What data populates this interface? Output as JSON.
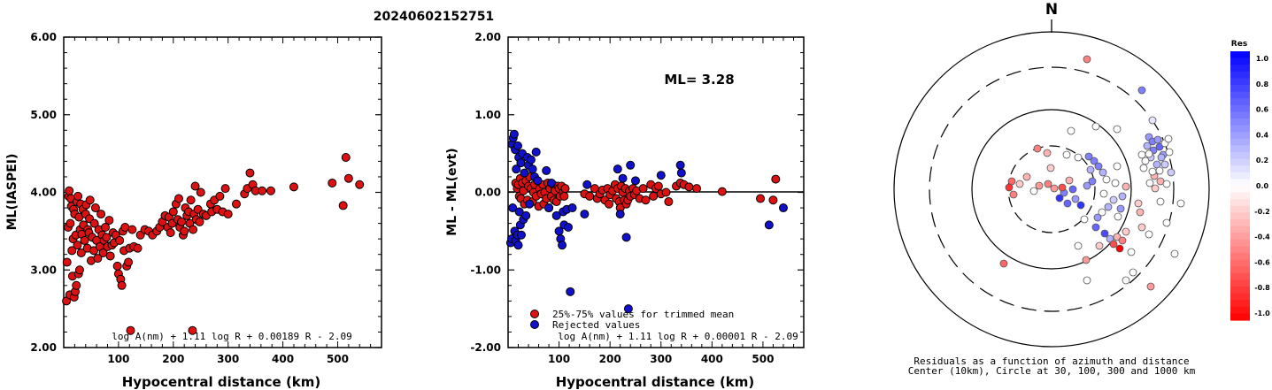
{
  "title": "20240602152751",
  "chart_data": [
    {
      "type": "scatter",
      "ylabel": "ML(IASPEI)",
      "xlabel": "Hypocentral distance (km)",
      "xlim": [
        0,
        580
      ],
      "ylim": [
        2.0,
        6.0
      ],
      "x_ticks": [
        100,
        200,
        300,
        400,
        500
      ],
      "y_ticks": [
        "2.00",
        "3.00",
        "4.00",
        "5.00",
        "6.00"
      ],
      "formula": "log A(nm) + 1.11 log R + 0.00189 R - 2.09",
      "marker_color": "#dd1111",
      "points": [
        [
          5,
          2.6
        ],
        [
          6,
          3.1
        ],
        [
          8,
          3.55
        ],
        [
          9,
          3.95
        ],
        [
          10,
          4.02
        ],
        [
          11,
          2.68
        ],
        [
          12,
          3.6
        ],
        [
          13,
          3.92
        ],
        [
          14,
          3.82
        ],
        [
          15,
          3.25
        ],
        [
          16,
          2.92
        ],
        [
          17,
          3.4
        ],
        [
          18,
          3.78
        ],
        [
          19,
          2.65
        ],
        [
          20,
          3.72
        ],
        [
          21,
          2.72
        ],
        [
          22,
          3.45
        ],
        [
          23,
          2.8
        ],
        [
          24,
          3.88
        ],
        [
          25,
          3.32
        ],
        [
          26,
          3.95
        ],
        [
          27,
          2.95
        ],
        [
          28,
          3.68
        ],
        [
          29,
          3.0
        ],
        [
          30,
          3.52
        ],
        [
          31,
          3.85
        ],
        [
          32,
          3.22
        ],
        [
          33,
          3.46
        ],
        [
          35,
          3.78
        ],
        [
          36,
          3.58
        ],
        [
          38,
          3.38
        ],
        [
          40,
          3.72
        ],
        [
          41,
          3.84
        ],
        [
          43,
          3.28
        ],
        [
          44,
          3.52
        ],
        [
          46,
          3.48
        ],
        [
          47,
          3.66
        ],
        [
          48,
          3.9
        ],
        [
          50,
          3.12
        ],
        [
          52,
          3.42
        ],
        [
          55,
          3.25
        ],
        [
          56,
          3.6
        ],
        [
          58,
          3.8
        ],
        [
          60,
          3.38
        ],
        [
          62,
          3.15
        ],
        [
          64,
          3.52
        ],
        [
          66,
          3.3
        ],
        [
          68,
          3.72
        ],
        [
          70,
          3.45
        ],
        [
          72,
          3.22
        ],
        [
          74,
          3.38
        ],
        [
          76,
          3.55
        ],
        [
          78,
          3.42
        ],
        [
          80,
          3.3
        ],
        [
          83,
          3.64
        ],
        [
          85,
          3.18
        ],
        [
          88,
          3.32
        ],
        [
          90,
          3.48
        ],
        [
          92,
          3.35
        ],
        [
          95,
          3.45
        ],
        [
          98,
          3.05
        ],
        [
          100,
          2.95
        ],
        [
          102,
          3.38
        ],
        [
          104,
          2.88
        ],
        [
          106,
          2.8
        ],
        [
          108,
          3.5
        ],
        [
          110,
          3.25
        ],
        [
          112,
          3.55
        ],
        [
          115,
          3.05
        ],
        [
          118,
          3.1
        ],
        [
          120,
          3.28
        ],
        [
          122,
          2.22
        ],
        [
          125,
          3.52
        ],
        [
          128,
          3.3
        ],
        [
          135,
          3.28
        ],
        [
          140,
          3.45
        ],
        [
          148,
          3.52
        ],
        [
          155,
          3.5
        ],
        [
          162,
          3.45
        ],
        [
          170,
          3.5
        ],
        [
          175,
          3.55
        ],
        [
          180,
          3.62
        ],
        [
          185,
          3.7
        ],
        [
          190,
          3.55
        ],
        [
          192,
          3.68
        ],
        [
          195,
          3.48
        ],
        [
          198,
          3.6
        ],
        [
          200,
          3.75
        ],
        [
          205,
          3.85
        ],
        [
          208,
          3.65
        ],
        [
          210,
          3.92
        ],
        [
          212,
          3.55
        ],
        [
          215,
          3.62
        ],
        [
          218,
          3.45
        ],
        [
          220,
          3.5
        ],
        [
          222,
          3.8
        ],
        [
          225,
          3.7
        ],
        [
          228,
          3.75
        ],
        [
          230,
          3.6
        ],
        [
          232,
          3.9
        ],
        [
          235,
          2.22
        ],
        [
          236,
          3.52
        ],
        [
          238,
          3.72
        ],
        [
          240,
          4.08
        ],
        [
          242,
          3.65
        ],
        [
          245,
          3.78
        ],
        [
          248,
          3.62
        ],
        [
          250,
          4.0
        ],
        [
          255,
          3.72
        ],
        [
          260,
          3.7
        ],
        [
          268,
          3.85
        ],
        [
          270,
          3.75
        ],
        [
          275,
          3.9
        ],
        [
          280,
          3.78
        ],
        [
          285,
          3.95
        ],
        [
          290,
          3.75
        ],
        [
          295,
          4.05
        ],
        [
          300,
          3.72
        ],
        [
          315,
          3.85
        ],
        [
          330,
          3.98
        ],
        [
          335,
          4.05
        ],
        [
          340,
          4.25
        ],
        [
          345,
          4.1
        ],
        [
          350,
          4.02
        ],
        [
          362,
          4.02
        ],
        [
          378,
          4.02
        ],
        [
          420,
          4.07
        ],
        [
          490,
          4.12
        ],
        [
          510,
          3.83
        ],
        [
          515,
          4.45
        ],
        [
          520,
          4.18
        ],
        [
          540,
          4.1
        ]
      ]
    },
    {
      "type": "scatter",
      "ylabel": "ML - ML(evt)",
      "xlabel": "Hypocentral distance (km)",
      "xlim": [
        0,
        580
      ],
      "ylim": [
        -2.0,
        2.0
      ],
      "x_ticks": [
        100,
        200,
        300,
        400,
        500
      ],
      "y_ticks": [
        "-2.00",
        "-1.00",
        "0.00",
        "1.00",
        "2.00"
      ],
      "annotation": "ML= 3.28",
      "formula": "log A(nm) + 1.11 log R + 0.00001 R - 2.09",
      "legend": [
        "25%-75% values for trimmed mean",
        "Rejected values"
      ],
      "colors": {
        "trimmed": "#dd1111",
        "rejected": "#1111cc"
      },
      "trimmed": [
        [
          15,
          0.12
        ],
        [
          18,
          0.05
        ],
        [
          20,
          0.1
        ],
        [
          22,
          -0.05
        ],
        [
          24,
          0.18
        ],
        [
          25,
          -0.08
        ],
        [
          28,
          0.12
        ],
        [
          30,
          0.02
        ],
        [
          32,
          -0.15
        ],
        [
          35,
          0.15
        ],
        [
          38,
          -0.1
        ],
        [
          40,
          0.08
        ],
        [
          42,
          0.2
        ],
        [
          45,
          0.05
        ],
        [
          48,
          -0.12
        ],
        [
          50,
          0.0
        ],
        [
          52,
          0.1
        ],
        [
          55,
          -0.05
        ],
        [
          58,
          0.15
        ],
        [
          60,
          -0.18
        ],
        [
          62,
          0.05
        ],
        [
          65,
          -0.02
        ],
        [
          68,
          0.1
        ],
        [
          70,
          -0.15
        ],
        [
          72,
          0.0
        ],
        [
          75,
          -0.08
        ],
        [
          78,
          0.12
        ],
        [
          80,
          -0.2
        ],
        [
          82,
          0.05
        ],
        [
          85,
          -0.05
        ],
        [
          88,
          0.1
        ],
        [
          90,
          -0.1
        ],
        [
          92,
          0.02
        ],
        [
          95,
          -0.12
        ],
        [
          98,
          0.08
        ],
        [
          100,
          0.05
        ],
        [
          102,
          -0.05
        ],
        [
          105,
          0.08
        ],
        [
          108,
          0.0
        ],
        [
          110,
          -0.05
        ],
        [
          112,
          0.05
        ],
        [
          150,
          -0.02
        ],
        [
          160,
          -0.05
        ],
        [
          170,
          0.05
        ],
        [
          175,
          -0.08
        ],
        [
          180,
          -0.02
        ],
        [
          185,
          0.03
        ],
        [
          190,
          -0.1
        ],
        [
          195,
          0.05
        ],
        [
          198,
          -0.15
        ],
        [
          200,
          -0.03
        ],
        [
          205,
          0.02
        ],
        [
          210,
          0.1
        ],
        [
          212,
          -0.08
        ],
        [
          215,
          0.05
        ],
        [
          218,
          -0.12
        ],
        [
          220,
          -0.2
        ],
        [
          222,
          0.08
        ],
        [
          225,
          0.0
        ],
        [
          228,
          -0.1
        ],
        [
          230,
          0.05
        ],
        [
          232,
          -0.15
        ],
        [
          235,
          -0.1
        ],
        [
          238,
          0.02
        ],
        [
          240,
          -0.05
        ],
        [
          245,
          0.05
        ],
        [
          248,
          -0.03
        ],
        [
          252,
          0.02
        ],
        [
          258,
          -0.08
        ],
        [
          265,
          0.05
        ],
        [
          270,
          -0.1
        ],
        [
          280,
          0.1
        ],
        [
          285,
          -0.05
        ],
        [
          290,
          0.05
        ],
        [
          295,
          0.08
        ],
        [
          300,
          -0.02
        ],
        [
          310,
          0.0
        ],
        [
          315,
          -0.12
        ],
        [
          330,
          0.08
        ],
        [
          338,
          0.12
        ],
        [
          345,
          0.1
        ],
        [
          355,
          0.07
        ],
        [
          370,
          0.05
        ],
        [
          420,
          0.01
        ],
        [
          495,
          -0.08
        ],
        [
          520,
          -0.1
        ],
        [
          525,
          0.17
        ]
      ],
      "rejected": [
        [
          5,
          -0.65
        ],
        [
          7,
          -0.6
        ],
        [
          8,
          0.62
        ],
        [
          9,
          -0.2
        ],
        [
          10,
          0.7
        ],
        [
          12,
          0.75
        ],
        [
          13,
          -0.5
        ],
        [
          14,
          0.55
        ],
        [
          15,
          -0.62
        ],
        [
          16,
          0.3
        ],
        [
          18,
          -0.55
        ],
        [
          19,
          0.6
        ],
        [
          20,
          -0.68
        ],
        [
          21,
          0.45
        ],
        [
          22,
          -0.25
        ],
        [
          24,
          -0.42
        ],
        [
          25,
          0.38
        ],
        [
          26,
          -0.55
        ],
        [
          28,
          0.5
        ],
        [
          30,
          -0.35
        ],
        [
          32,
          0.25
        ],
        [
          35,
          -0.3
        ],
        [
          38,
          0.45
        ],
        [
          40,
          0.35
        ],
        [
          42,
          -0.15
        ],
        [
          45,
          0.42
        ],
        [
          48,
          0.3
        ],
        [
          52,
          0.2
        ],
        [
          55,
          0.52
        ],
        [
          58,
          0.15
        ],
        [
          75,
          0.28
        ],
        [
          80,
          -0.2
        ],
        [
          85,
          0.12
        ],
        [
          95,
          -0.3
        ],
        [
          100,
          -0.5
        ],
        [
          103,
          -0.6
        ],
        [
          106,
          -0.68
        ],
        [
          108,
          -0.25
        ],
        [
          110,
          -0.42
        ],
        [
          115,
          -0.22
        ],
        [
          118,
          -0.45
        ],
        [
          122,
          -1.28
        ],
        [
          126,
          -0.2
        ],
        [
          150,
          -0.28
        ],
        [
          155,
          0.1
        ],
        [
          215,
          0.3
        ],
        [
          220,
          -0.28
        ],
        [
          225,
          0.18
        ],
        [
          232,
          -0.58
        ],
        [
          236,
          -1.5
        ],
        [
          240,
          0.35
        ],
        [
          250,
          0.15
        ],
        [
          300,
          0.22
        ],
        [
          338,
          0.35
        ],
        [
          340,
          0.25
        ],
        [
          512,
          -0.42
        ],
        [
          540,
          -0.2
        ]
      ]
    },
    {
      "type": "polar_scatter",
      "north_label": "N",
      "caption": [
        "Residuals as a function of azimuth and distance",
        "Center (10km), Circle at 30, 100, 300 and 1000 km"
      ],
      "colorbar": {
        "title": "Res",
        "ticks": [
          "1.0",
          "0.8",
          "0.6",
          "0.4",
          "0.2",
          "0.0",
          "-0.2",
          "-0.4",
          "-0.6",
          "-0.8",
          "-1.0"
        ]
      }
    }
  ]
}
